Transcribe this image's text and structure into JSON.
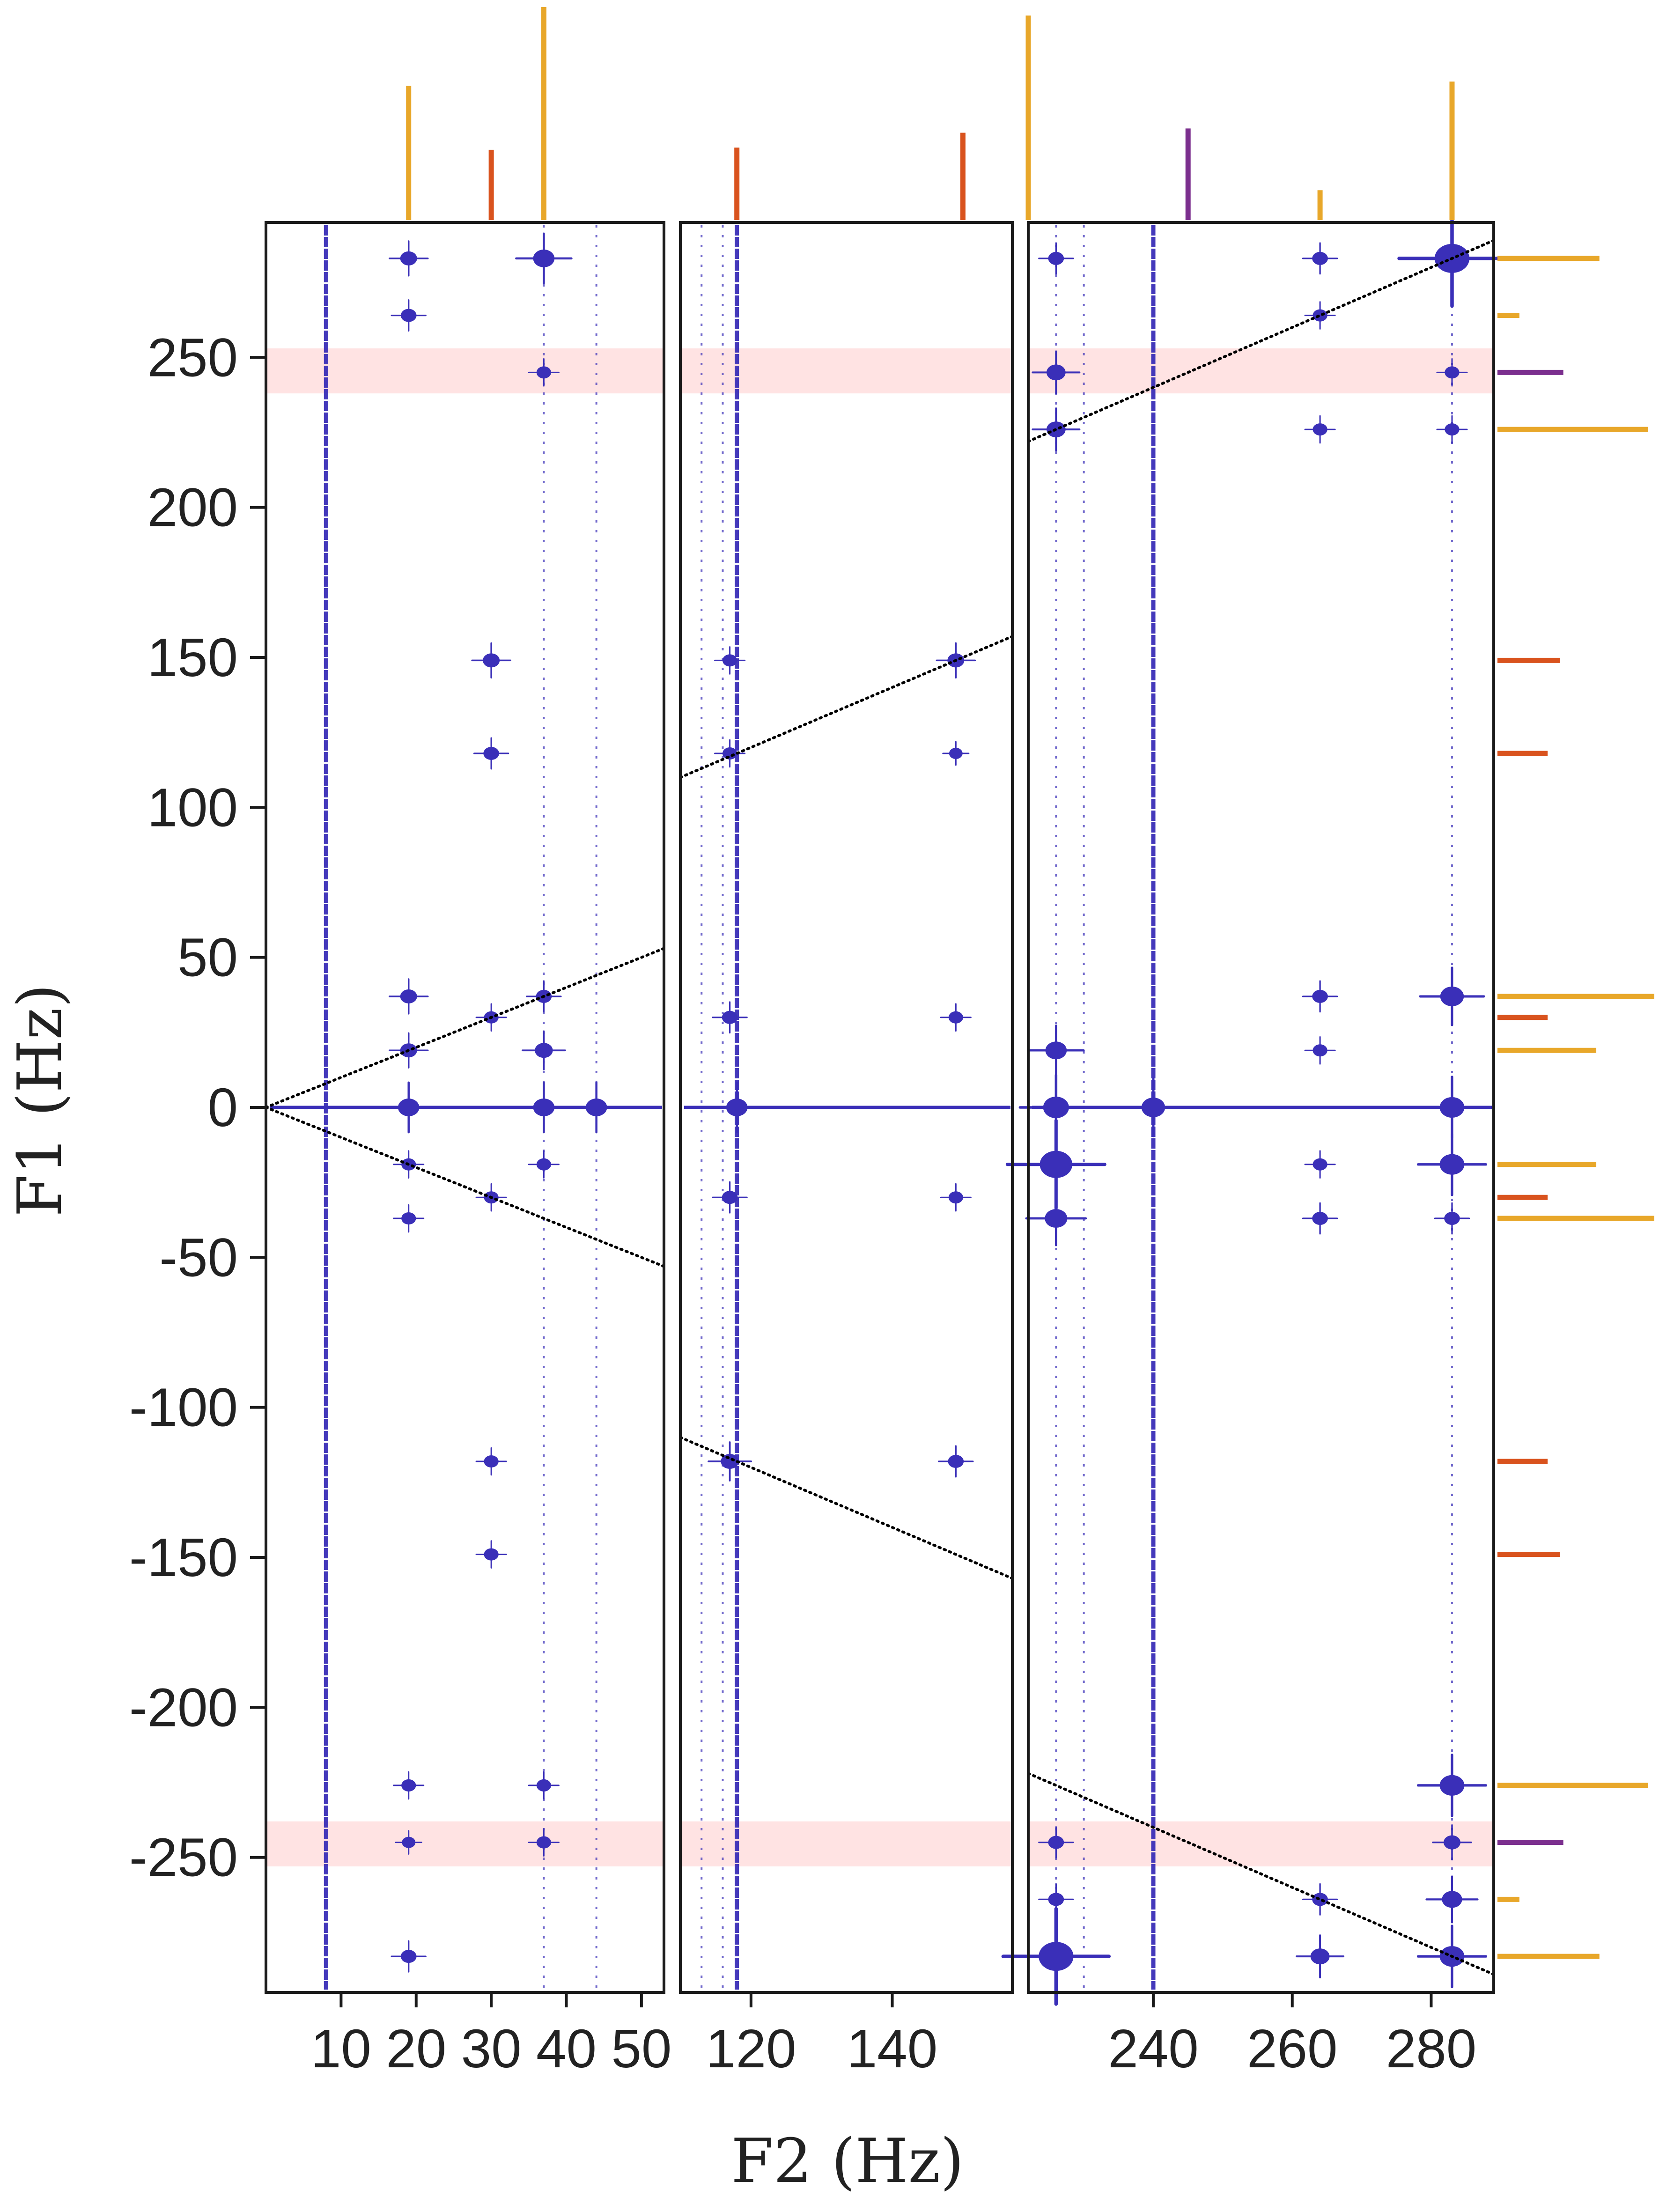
{
  "colors": {
    "peak": "#3a2fb8",
    "band": "#ffe3e3",
    "frame": "#1a1a1a",
    "reference_line": "#000000",
    "stick_orange": "#e8a72a",
    "stick_red": "#d9531e",
    "stick_purple": "#7b2f8e"
  },
  "chart_data": {
    "type": "scatter",
    "title": "",
    "xlabel": "F2 (Hz)",
    "ylabel": "F1 (Hz)",
    "ylim": [
      -295,
      295
    ],
    "yticks": [
      250,
      200,
      150,
      100,
      50,
      0,
      -50,
      -100,
      -150,
      -200,
      -250
    ],
    "ytick_labels": [
      "250",
      "200",
      "150",
      "100",
      "50",
      "0",
      "-50",
      "-100",
      "-150",
      "-200",
      "-250"
    ],
    "grid": false,
    "legend": "none",
    "panels": [
      {
        "name": "left",
        "xlim": [
          0,
          53
        ],
        "xticks": [
          10,
          20,
          30,
          40,
          50
        ],
        "xtick_labels": [
          "10",
          "20",
          "30",
          "40",
          "50"
        ],
        "vertical_streaks": [
          {
            "x": 8,
            "strong": true
          },
          {
            "x": 37,
            "strong": false
          },
          {
            "x": 44,
            "strong": false
          }
        ],
        "reference_lines": [
          {
            "x": [
              0,
              53
            ],
            "y": [
              0,
              53
            ]
          },
          {
            "x": [
              0,
              53
            ],
            "y": [
              0,
              -53
            ]
          }
        ],
        "peaks": [
          {
            "x": 19,
            "y": 0,
            "size": 1
          },
          {
            "x": 37,
            "y": 0,
            "size": 1
          },
          {
            "x": 44,
            "y": 0,
            "size": 1
          },
          {
            "x": 19,
            "y": 283,
            "size": 0.6
          },
          {
            "x": 19,
            "y": 264,
            "size": 0.5
          },
          {
            "x": 37,
            "y": 283,
            "size": 1
          },
          {
            "x": 37,
            "y": 245,
            "size": 0.4
          },
          {
            "x": 30,
            "y": 149,
            "size": 0.6
          },
          {
            "x": 30,
            "y": 118,
            "size": 0.5
          },
          {
            "x": 19,
            "y": 37,
            "size": 0.6
          },
          {
            "x": 19,
            "y": 19,
            "size": 0.6
          },
          {
            "x": 30,
            "y": 30,
            "size": 0.4
          },
          {
            "x": 37,
            "y": 37,
            "size": 0.5
          },
          {
            "x": 37,
            "y": 19,
            "size": 0.7
          },
          {
            "x": 19,
            "y": -19,
            "size": 0.4
          },
          {
            "x": 19,
            "y": -37,
            "size": 0.4
          },
          {
            "x": 30,
            "y": -30,
            "size": 0.4
          },
          {
            "x": 37,
            "y": -19,
            "size": 0.4
          },
          {
            "x": 30,
            "y": -118,
            "size": 0.4
          },
          {
            "x": 30,
            "y": -149,
            "size": 0.4
          },
          {
            "x": 19,
            "y": -226,
            "size": 0.4
          },
          {
            "x": 19,
            "y": -245,
            "size": 0.3
          },
          {
            "x": 37,
            "y": -226,
            "size": 0.4
          },
          {
            "x": 37,
            "y": -245,
            "size": 0.4
          },
          {
            "x": 19,
            "y": -283,
            "size": 0.5
          }
        ]
      },
      {
        "name": "middle",
        "xlim": [
          110,
          157
        ],
        "xticks": [
          120,
          140
        ],
        "xtick_labels": [
          "120",
          "140"
        ],
        "vertical_streaks": [
          {
            "x": 118,
            "strong": true
          },
          {
            "x": 116,
            "strong": false
          },
          {
            "x": 113,
            "strong": false
          }
        ],
        "reference_lines": [
          {
            "x": [
              110,
              157
            ],
            "y": [
              110,
              157
            ]
          },
          {
            "x": [
              110,
              157
            ],
            "y": [
              -110,
              -157
            ]
          }
        ],
        "peaks": [
          {
            "x": 118,
            "y": 0,
            "size": 1
          },
          {
            "x": 117,
            "y": 149,
            "size": 0.4
          },
          {
            "x": 117,
            "y": 118,
            "size": 0.4
          },
          {
            "x": 117,
            "y": 30,
            "size": 0.5
          },
          {
            "x": 117,
            "y": -30,
            "size": 0.5
          },
          {
            "x": 117,
            "y": -118,
            "size": 0.7
          },
          {
            "x": 149,
            "y": 149,
            "size": 0.6
          },
          {
            "x": 149,
            "y": 118,
            "size": 0.3
          },
          {
            "x": 149,
            "y": 30,
            "size": 0.4
          },
          {
            "x": 149,
            "y": -30,
            "size": 0.4
          },
          {
            "x": 149,
            "y": -118,
            "size": 0.5
          }
        ]
      },
      {
        "name": "right",
        "xlim": [
          222,
          289
        ],
        "xticks": [
          240,
          260,
          280
        ],
        "xtick_labels": [
          "240",
          "260",
          "280"
        ],
        "vertical_streaks": [
          {
            "x": 240,
            "strong": true
          },
          {
            "x": 226,
            "strong": false
          },
          {
            "x": 230,
            "strong": false
          },
          {
            "x": 283,
            "strong": false
          }
        ],
        "reference_lines": [
          {
            "x": [
              222,
              289
            ],
            "y": [
              222,
              289
            ]
          },
          {
            "x": [
              222,
              289
            ],
            "y": [
              -222,
              -289
            ]
          }
        ],
        "peaks": [
          {
            "x": 226,
            "y": 0,
            "size": 1.4
          },
          {
            "x": 240,
            "y": 0,
            "size": 1.2
          },
          {
            "x": 283,
            "y": 0,
            "size": 1.3
          },
          {
            "x": 226,
            "y": 283,
            "size": 0.5
          },
          {
            "x": 226,
            "y": 245,
            "size": 0.8
          },
          {
            "x": 226,
            "y": 226,
            "size": 0.8
          },
          {
            "x": 264,
            "y": 283,
            "size": 0.5
          },
          {
            "x": 264,
            "y": 264,
            "size": 0.4
          },
          {
            "x": 264,
            "y": 226,
            "size": 0.4
          },
          {
            "x": 283,
            "y": 283,
            "size": 2.2
          },
          {
            "x": 283,
            "y": 245,
            "size": 0.4
          },
          {
            "x": 283,
            "y": 226,
            "size": 0.4
          },
          {
            "x": 226,
            "y": 19,
            "size": 1
          },
          {
            "x": 226,
            "y": -19,
            "size": 2
          },
          {
            "x": 226,
            "y": -37,
            "size": 1.1
          },
          {
            "x": 264,
            "y": 37,
            "size": 0.5
          },
          {
            "x": 264,
            "y": 19,
            "size": 0.4
          },
          {
            "x": 264,
            "y": -19,
            "size": 0.4
          },
          {
            "x": 264,
            "y": -37,
            "size": 0.5
          },
          {
            "x": 283,
            "y": 37,
            "size": 1.2
          },
          {
            "x": 283,
            "y": -19,
            "size": 1.3
          },
          {
            "x": 283,
            "y": -37,
            "size": 0.5
          },
          {
            "x": 226,
            "y": -245,
            "size": 0.5
          },
          {
            "x": 226,
            "y": -264,
            "size": 0.5
          },
          {
            "x": 226,
            "y": -283,
            "size": 2.2
          },
          {
            "x": 264,
            "y": -264,
            "size": 0.5
          },
          {
            "x": 264,
            "y": -283,
            "size": 0.8
          },
          {
            "x": 283,
            "y": -226,
            "size": 1.3
          },
          {
            "x": 283,
            "y": -245,
            "size": 0.6
          },
          {
            "x": 283,
            "y": -264,
            "size": 0.9
          },
          {
            "x": 283,
            "y": -283,
            "size": 1.3
          }
        ]
      }
    ],
    "highlight_bands": [
      {
        "y": [
          238,
          253
        ]
      },
      {
        "y": [
          -253,
          -238
        ]
      }
    ],
    "top_sticks": [
      {
        "x": 19,
        "height": 0.63,
        "color": "orange"
      },
      {
        "x": 30,
        "height": 0.33,
        "color": "red"
      },
      {
        "x": 37,
        "height": 1.0,
        "color": "orange"
      },
      {
        "x": 118,
        "height": 0.34,
        "color": "red"
      },
      {
        "x": 150,
        "height": 0.41,
        "color": "red"
      },
      {
        "x": 222,
        "height": 0.96,
        "color": "orange"
      },
      {
        "x": 245,
        "height": 0.43,
        "color": "purple"
      },
      {
        "x": 264,
        "height": 0.14,
        "color": "orange"
      },
      {
        "x": 283,
        "height": 0.65,
        "color": "orange"
      }
    ],
    "side_sticks": [
      {
        "y": 283,
        "length": 0.65,
        "color": "orange"
      },
      {
        "y": 264,
        "length": 0.14,
        "color": "orange"
      },
      {
        "y": 245,
        "length": 0.42,
        "color": "purple"
      },
      {
        "y": 226,
        "length": 0.96,
        "color": "orange"
      },
      {
        "y": 149,
        "length": 0.4,
        "color": "red"
      },
      {
        "y": 118,
        "length": 0.32,
        "color": "red"
      },
      {
        "y": 37,
        "length": 1.0,
        "color": "orange"
      },
      {
        "y": 30,
        "length": 0.32,
        "color": "red"
      },
      {
        "y": 19,
        "length": 0.63,
        "color": "orange"
      },
      {
        "y": -19,
        "length": 0.63,
        "color": "orange"
      },
      {
        "y": -30,
        "length": 0.32,
        "color": "red"
      },
      {
        "y": -37,
        "length": 1.0,
        "color": "orange"
      },
      {
        "y": -118,
        "length": 0.32,
        "color": "red"
      },
      {
        "y": -149,
        "length": 0.4,
        "color": "red"
      },
      {
        "y": -226,
        "length": 0.96,
        "color": "orange"
      },
      {
        "y": -245,
        "length": 0.42,
        "color": "purple"
      },
      {
        "y": -264,
        "length": 0.14,
        "color": "orange"
      },
      {
        "y": -283,
        "length": 0.65,
        "color": "orange"
      }
    ]
  }
}
